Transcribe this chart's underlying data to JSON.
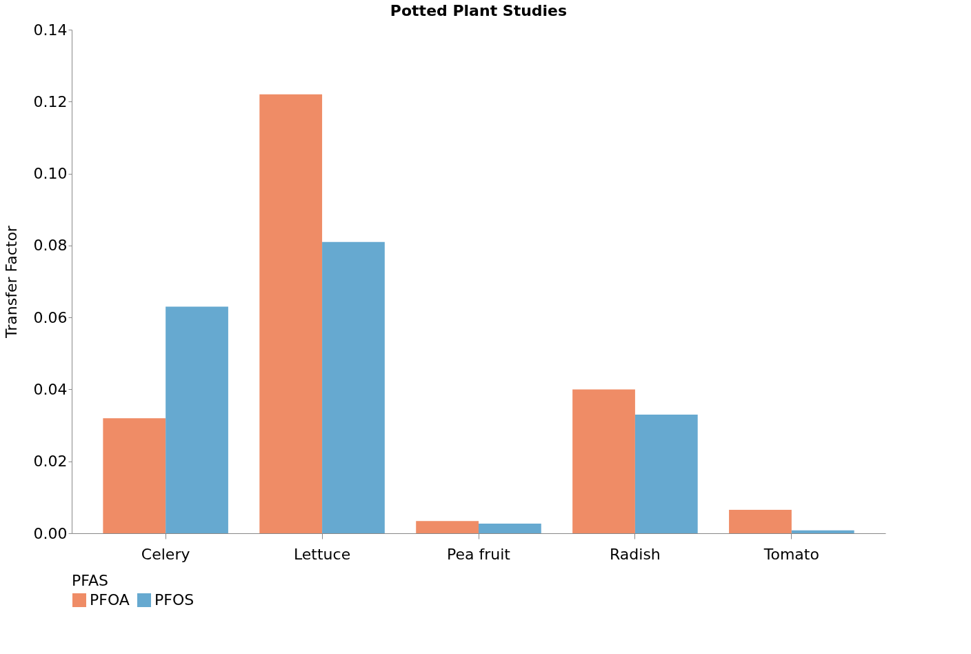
{
  "chart_data": {
    "type": "bar",
    "title": "Potted Plant Studies",
    "ylabel": "Transfer Factor",
    "legend_title": "PFAS",
    "legend": "bottom",
    "grid": false,
    "categories": [
      "Celery",
      "Lettuce",
      "Pea fruit",
      "Radish",
      "Tomato"
    ],
    "series": [
      {
        "name": "PFOA",
        "color": "#ef8c66",
        "values": [
          0.032,
          0.122,
          0.0034,
          0.04,
          0.0065
        ]
      },
      {
        "name": "PFOS",
        "color": "#66a9d0",
        "values": [
          0.063,
          0.081,
          0.0027,
          0.033,
          0.0008
        ]
      }
    ],
    "ylim": [
      0,
      0.14
    ],
    "yticks": [
      {
        "value": 0,
        "label": "0.00"
      },
      {
        "value": 0.02,
        "label": "0.02"
      },
      {
        "value": 0.04,
        "label": "0.04"
      },
      {
        "value": 0.06,
        "label": "0.06"
      },
      {
        "value": 0.08,
        "label": "0.08"
      },
      {
        "value": 0.1,
        "label": "0.10"
      },
      {
        "value": 0.12,
        "label": "0.12"
      },
      {
        "value": 0.14,
        "label": "0.14"
      }
    ]
  }
}
